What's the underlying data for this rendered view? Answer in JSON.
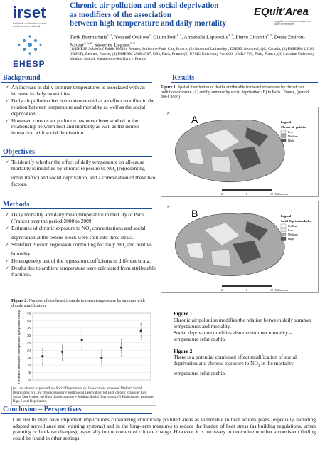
{
  "header": {
    "title_lines": [
      "Chronic air pollution and social deprivation",
      "as modifiers of the association",
      "between high temperature and daily mortality"
    ],
    "authors": [
      {
        "name": "Tarik Benmarhnia",
        "sup": "1, 2"
      },
      {
        "name": ", Youssef Oulhote",
        "sup": "2"
      },
      {
        "name": ", Claire Petit",
        "sup": "1, 3"
      },
      {
        "name": ", Annabelle Lapostolle",
        "sup": "4, 5"
      },
      {
        "name": ", Pierre Chauvin",
        "sup": "4, 5"
      },
      {
        "name": ",  Denis Zmirou-Navier",
        "sup": "1, 3, 6"
      },
      {
        "name": ", Séverine Deguen",
        "sup": "1, 3"
      }
    ],
    "affiliations": "(1) EHESP School of Public Health, Rennes, Sorbonne-Paris Cité, France; (2) Montreal University , DSEST, Montréal, QC, Canada; (3) INSERM U1085 (IRSET), Rennes, France; (4) INSERM UMRS707, DS3, Paris, France;(5) UPMC University Paris 06, UMRS 707, Paris, France; (6) Lorraine University Medical School, Vandoeuvre-les-Nancy, France",
    "logos": {
      "irset": "irset",
      "irset_sub": "Institut de recherche en santé, environnement et travail",
      "ehesp": "EHESP",
      "equitarea": "EQuit'Area",
      "equitarea_sub": "Inégalités environnementales de santé et territoires"
    }
  },
  "background": {
    "heading": "Background",
    "bullets": [
      [
        "An increase in daily summer temperatures is associated with an increase in daily mortalities"
      ],
      [
        "Daily air pollution has been documented as an effect modifier in the relation between temperature and mortality as well as the social deprivation."
      ],
      [
        " However, chronic air pollution has never been studied in the relationship between heat and mortality as well as the double interaction with social deprivation"
      ]
    ]
  },
  "objectives": {
    "heading": "Objectives",
    "bullets": [
      [
        "To identify whether the effect of daily temperature on all-cause mortality is modified by chronic exposure to NO",
        {
          "sub": "2"
        },
        " (representing urban traffic) and social deprivation, and a combination of these two factors."
      ]
    ]
  },
  "methods": {
    "heading": "Methods",
    "bullets": [
      [
        "Daily mortality and daily mean temperature in the City of Paris (France) over the period 2000 to 2009"
      ],
      [
        "Estimates of chronic exposure to NO",
        {
          "sub": "2"
        },
        " concentrations and social deprivation at the census block were split into three strata."
      ],
      [
        "Stratified Poisson regression controlling for daily NO",
        {
          "sub": "2"
        },
        " and relative humidity."
      ],
      [
        "Heterogeneity test of the regression coefficients in different strata."
      ],
      [
        "Deaths due to ambient temperature were calculated from attributable fractions."
      ]
    ]
  },
  "figure2": {
    "label": "Figure 2",
    "caption": ": Number of deaths attributable to mean temperature by summer with double stratification",
    "legend": "(a) Low chronic exposure/Low Social Deprivation; (b) Low chronic exposure/ Medium Social Deprivation; (c) Low chronic exposure/ High Social Deprivation; (d) High chronic exposure/ Low Social Deprivation; (e) High chronic exposure/ Medium Social Deprivation; (f) High chronic exposure/ High Social Deprivation."
  },
  "chart_data": {
    "type": "errorbar",
    "ylabel": "Number of deaths attributable to temperature by exposure class (Lag 0-3)",
    "values": [
      16,
      19,
      27,
      15,
      22,
      33
    ],
    "errors": [
      6,
      6,
      7,
      6,
      6,
      6
    ],
    "color": "#333333",
    "ylim": [
      0,
      45
    ],
    "yticks": [
      0,
      5,
      10,
      15,
      20,
      25,
      30,
      35,
      40,
      45
    ],
    "grid": true
  },
  "results": {
    "heading": "Results",
    "figure1_label": "Figure 1:",
    "figure1_caption": " Spatial distribution of deaths attributable to mean temperature by chronic air pollution exposure (A) and by summer by social deprivation (B) in Paris , France, (period 2004-2009)",
    "map_a": {
      "letter": "A",
      "legend": "Legend",
      "legend_title": "Chronic air pollution",
      "classes": [
        "Low",
        "Medium",
        "High"
      ],
      "scale": [
        "0",
        "5",
        "10"
      ],
      "units": "Kilometers",
      "north": "N"
    },
    "map_b": {
      "letter": "B",
      "legend": "Legend",
      "legend_title": "Social Deprivation Index",
      "classes": [
        "No Data",
        "Low",
        "Medium",
        "High"
      ],
      "scale": [
        "0",
        "5",
        "10"
      ],
      "units": "Kilometers",
      "north": "N"
    },
    "text1_heading": "Figure 1",
    "text1": [
      "Chronic air pollution modifies the relation between daily summer temperatures and mortality.",
      "Social deprivation modifies also the  summer mortality – temperature relationship."
    ],
    "text2_heading": "Figure 2",
    "text2": [
      "There is a potential combined effect modification of social deprivation and chronic exposure to NO",
      {
        "sub": "2"
      },
      " in the mortality-temperature relationship."
    ]
  },
  "conclusion": {
    "heading": "Conclusion – Perspectives",
    "text": "Our results may have important implications considering chronically polluted areas as vulnerable in  heat actions plans (especially including adapted surveillance and warning systems) and in the long-term measures to reduce the burden of heat stress (as building regulations, urban planning or land-use changes), especially in the context of climate change. However, it is necessary to determine whether a consistent finding could be found in other settings."
  }
}
